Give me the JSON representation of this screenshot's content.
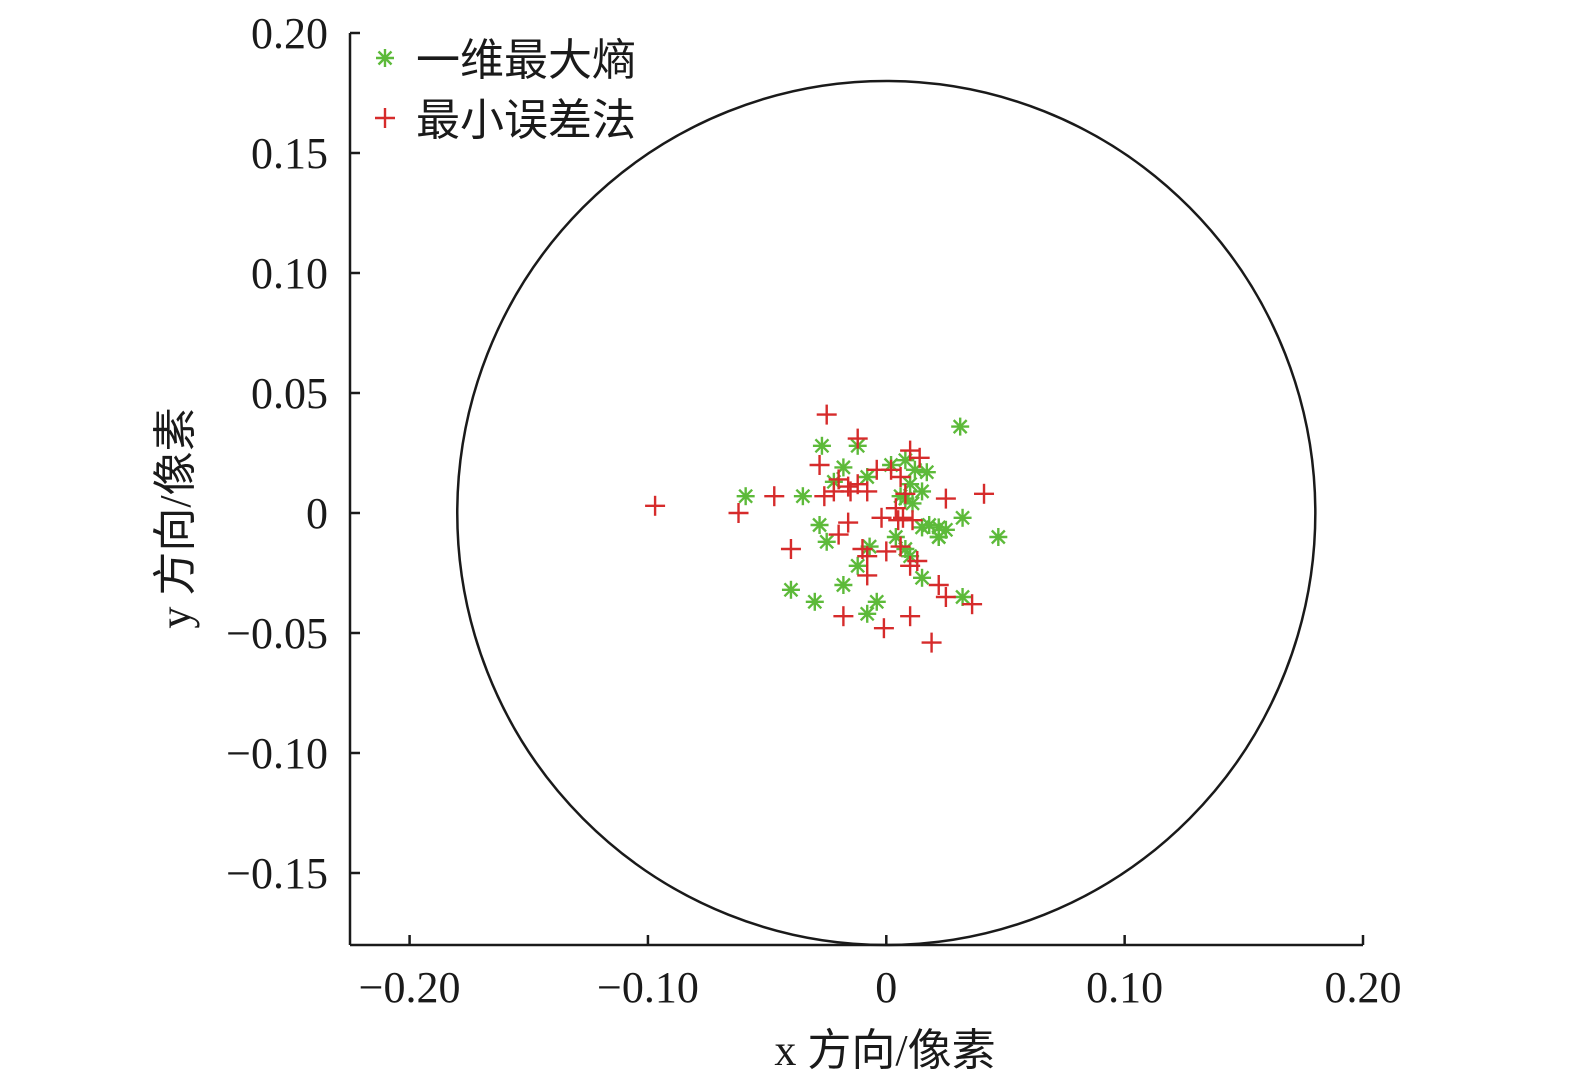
{
  "chart_data": {
    "type": "scatter",
    "xlabel": "x 方向/像素",
    "ylabel": "y 方向/像素",
    "xlim": [
      -0.225,
      0.2
    ],
    "ylim": [
      -0.18,
      0.2
    ],
    "x_ticks": [
      -0.2,
      -0.1,
      0,
      0.1,
      0.2
    ],
    "x_tick_labels": [
      "−0.20",
      "−0.10",
      "0",
      "0.10",
      "0.20"
    ],
    "y_ticks": [
      0.2,
      0.15,
      0.1,
      0.05,
      0,
      -0.05,
      -0.1,
      -0.15
    ],
    "y_tick_labels": [
      "0.20",
      "0.15",
      "0.10",
      "0.05",
      "0",
      "−0.05",
      "−0.10",
      "−0.15"
    ],
    "grid": false,
    "legend_position": "top-left",
    "reference_circle": {
      "center": [
        0,
        0
      ],
      "radius": 0.18,
      "color": "#1a1a1a"
    },
    "series": [
      {
        "name": "一维最大熵",
        "marker": "asterisk",
        "color": "#5dba3a",
        "points": [
          [
            0.031,
            0.036
          ],
          [
            -0.027,
            0.028
          ],
          [
            -0.012,
            0.028
          ],
          [
            0.002,
            0.02
          ],
          [
            0.008,
            0.022
          ],
          [
            0.012,
            0.018
          ],
          [
            0.017,
            0.017
          ],
          [
            -0.018,
            0.019
          ],
          [
            -0.022,
            0.013
          ],
          [
            -0.008,
            0.015
          ],
          [
            0.01,
            0.012
          ],
          [
            0.015,
            0.009
          ],
          [
            -0.059,
            0.007
          ],
          [
            -0.035,
            0.007
          ],
          [
            0.008,
            0.006
          ],
          [
            0.011,
            0.004
          ],
          [
            0.006,
            0.007
          ],
          [
            0.032,
            -0.002
          ],
          [
            -0.028,
            -0.005
          ],
          [
            0.022,
            -0.006
          ],
          [
            0.025,
            -0.007
          ],
          [
            0.015,
            -0.006
          ],
          [
            0.047,
            -0.01
          ],
          [
            0.022,
            -0.01
          ],
          [
            0.018,
            -0.005
          ],
          [
            -0.025,
            -0.012
          ],
          [
            0.004,
            -0.01
          ],
          [
            0.008,
            -0.015
          ],
          [
            -0.007,
            -0.014
          ],
          [
            0.01,
            -0.018
          ],
          [
            0.015,
            -0.027
          ],
          [
            -0.012,
            -0.022
          ],
          [
            -0.018,
            -0.03
          ],
          [
            -0.04,
            -0.032
          ],
          [
            -0.03,
            -0.037
          ],
          [
            -0.004,
            -0.037
          ],
          [
            -0.008,
            -0.042
          ],
          [
            0.032,
            -0.035
          ],
          [
            0.022,
            -0.01
          ]
        ]
      },
      {
        "name": "最小误差法",
        "marker": "plus",
        "color": "#d62b2b",
        "points": [
          [
            -0.097,
            0.003
          ],
          [
            -0.062,
            0.0
          ],
          [
            -0.047,
            0.007
          ],
          [
            -0.04,
            -0.015
          ],
          [
            -0.025,
            0.041
          ],
          [
            -0.012,
            0.031
          ],
          [
            -0.028,
            0.02
          ],
          [
            0.01,
            0.026
          ],
          [
            0.014,
            0.023
          ],
          [
            -0.02,
            0.014
          ],
          [
            -0.016,
            0.011
          ],
          [
            -0.022,
            0.009
          ],
          [
            -0.015,
            0.009
          ],
          [
            -0.008,
            0.009
          ],
          [
            -0.012,
            0.012
          ],
          [
            -0.004,
            0.018
          ],
          [
            0.002,
            0.018
          ],
          [
            0.006,
            0.015
          ],
          [
            -0.026,
            0.007
          ],
          [
            0.008,
            0.008
          ],
          [
            0.025,
            0.006
          ],
          [
            0.041,
            0.008
          ],
          [
            0.004,
            0.002
          ],
          [
            0.011,
            -0.003
          ],
          [
            0.005,
            -0.003
          ],
          [
            0.007,
            -0.002
          ],
          [
            -0.002,
            -0.002
          ],
          [
            -0.016,
            -0.004
          ],
          [
            -0.02,
            -0.009
          ],
          [
            -0.01,
            -0.015
          ],
          [
            -0.008,
            -0.018
          ],
          [
            0.0,
            -0.016
          ],
          [
            0.006,
            -0.014
          ],
          [
            0.01,
            -0.022
          ],
          [
            0.013,
            -0.02
          ],
          [
            -0.008,
            -0.026
          ],
          [
            0.022,
            -0.03
          ],
          [
            0.025,
            -0.035
          ],
          [
            0.036,
            -0.038
          ],
          [
            -0.018,
            -0.043
          ],
          [
            0.01,
            -0.043
          ],
          [
            -0.001,
            -0.048
          ],
          [
            0.019,
            -0.054
          ]
        ]
      }
    ]
  }
}
